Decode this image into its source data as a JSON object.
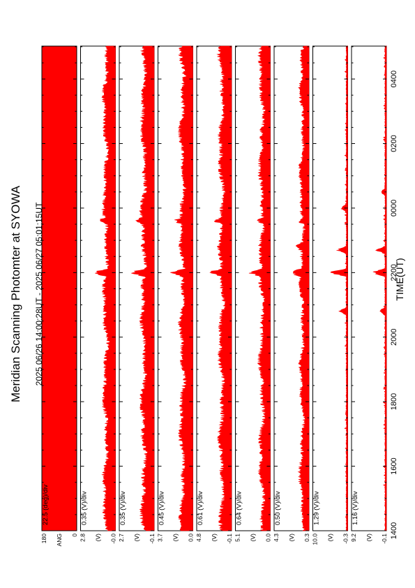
{
  "chart_data": {
    "type": "line",
    "title": "Meridian Scanning Photomter at SYOWA",
    "subtitle": "2025 06/26 14:00:28UT - 2025 06/27 05:01:15UT",
    "xlabel": "TIME(UT)",
    "x_tick_labels": [
      "1400",
      "1600",
      "1800",
      "2000",
      "2200",
      "0000",
      "0200",
      "0400"
    ],
    "x_tick_hours": [
      14,
      16,
      18,
      20,
      22,
      24,
      26,
      28
    ],
    "xlim_hours": [
      14.0,
      29.02
    ],
    "line_color": "#ff0000",
    "panels": [
      {
        "ylabel": "ANG",
        "scale": "22.5 (deg)/div",
        "ymin": "0",
        "ymax": "180",
        "kind": "angle",
        "baseline": 0.5,
        "amp": 0.5,
        "bursts": []
      },
      {
        "ylabel": "(V)",
        "scale": "0.35 (V)/div",
        "ymin": "-0.0",
        "ymax": "2.8",
        "kind": "signal",
        "baseline": 0.28,
        "amp": 0.12,
        "bursts": [
          {
            "hour": 22.0,
            "height": 0.45
          },
          {
            "hour": 23.6,
            "height": 0.2
          }
        ]
      },
      {
        "ylabel": "(V)",
        "scale": "0.35 (V)/div",
        "ymin": "-0.1",
        "ymax": "2.7",
        "kind": "signal",
        "baseline": 0.3,
        "amp": 0.13,
        "bursts": [
          {
            "hour": 22.0,
            "height": 0.5
          },
          {
            "hour": 23.6,
            "height": 0.25
          }
        ]
      },
      {
        "ylabel": "(V)",
        "scale": "0.45 (V)/div",
        "ymin": "0.0",
        "ymax": "3.7",
        "kind": "signal",
        "baseline": 0.3,
        "amp": 0.12,
        "bursts": [
          {
            "hour": 22.0,
            "height": 0.45
          },
          {
            "hour": 23.6,
            "height": 0.22
          }
        ]
      },
      {
        "ylabel": "(V)",
        "scale": "0.61 (V)/div",
        "ymin": "-0.1",
        "ymax": "4.8",
        "kind": "signal",
        "baseline": 0.28,
        "amp": 0.13,
        "bursts": [
          {
            "hour": 22.0,
            "height": 0.45
          },
          {
            "hour": 23.6,
            "height": 0.25
          }
        ]
      },
      {
        "ylabel": "(V)",
        "scale": "0.64 (V)/div",
        "ymin": "0.0",
        "ymax": "5.1",
        "kind": "signal",
        "baseline": 0.24,
        "amp": 0.12,
        "bursts": [
          {
            "hour": 22.0,
            "height": 0.4
          },
          {
            "hour": 23.6,
            "height": 0.22
          }
        ]
      },
      {
        "ylabel": "(V)",
        "scale": "0.50 (V)/div",
        "ymin": "0.3",
        "ymax": "4.3",
        "kind": "signal",
        "baseline": 0.2,
        "amp": 0.1,
        "bursts": [
          {
            "hour": 22.0,
            "height": 0.35
          },
          {
            "hour": 22.8,
            "height": 0.2
          },
          {
            "hour": 23.6,
            "height": 0.2
          }
        ]
      },
      {
        "ylabel": "(V)",
        "scale": "1.29 (V)/div",
        "ymin": "-0.3",
        "ymax": "10.0",
        "kind": "sparse",
        "baseline": 0.03,
        "amp": 0.02,
        "bursts": [
          {
            "hour": 20.8,
            "height": 0.25
          },
          {
            "hour": 22.0,
            "height": 0.55
          },
          {
            "hour": 22.7,
            "height": 0.3
          },
          {
            "hour": 24.0,
            "height": 0.18
          }
        ]
      },
      {
        "ylabel": "(V)",
        "scale": "1.16 (V)/div",
        "ymin": "-0.1",
        "ymax": "9.2",
        "kind": "sparse",
        "baseline": 0.03,
        "amp": 0.02,
        "bursts": [
          {
            "hour": 20.8,
            "height": 0.2
          },
          {
            "hour": 22.0,
            "height": 0.45
          },
          {
            "hour": 22.7,
            "height": 0.3
          },
          {
            "hour": 24.5,
            "height": 0.12
          }
        ]
      }
    ]
  }
}
